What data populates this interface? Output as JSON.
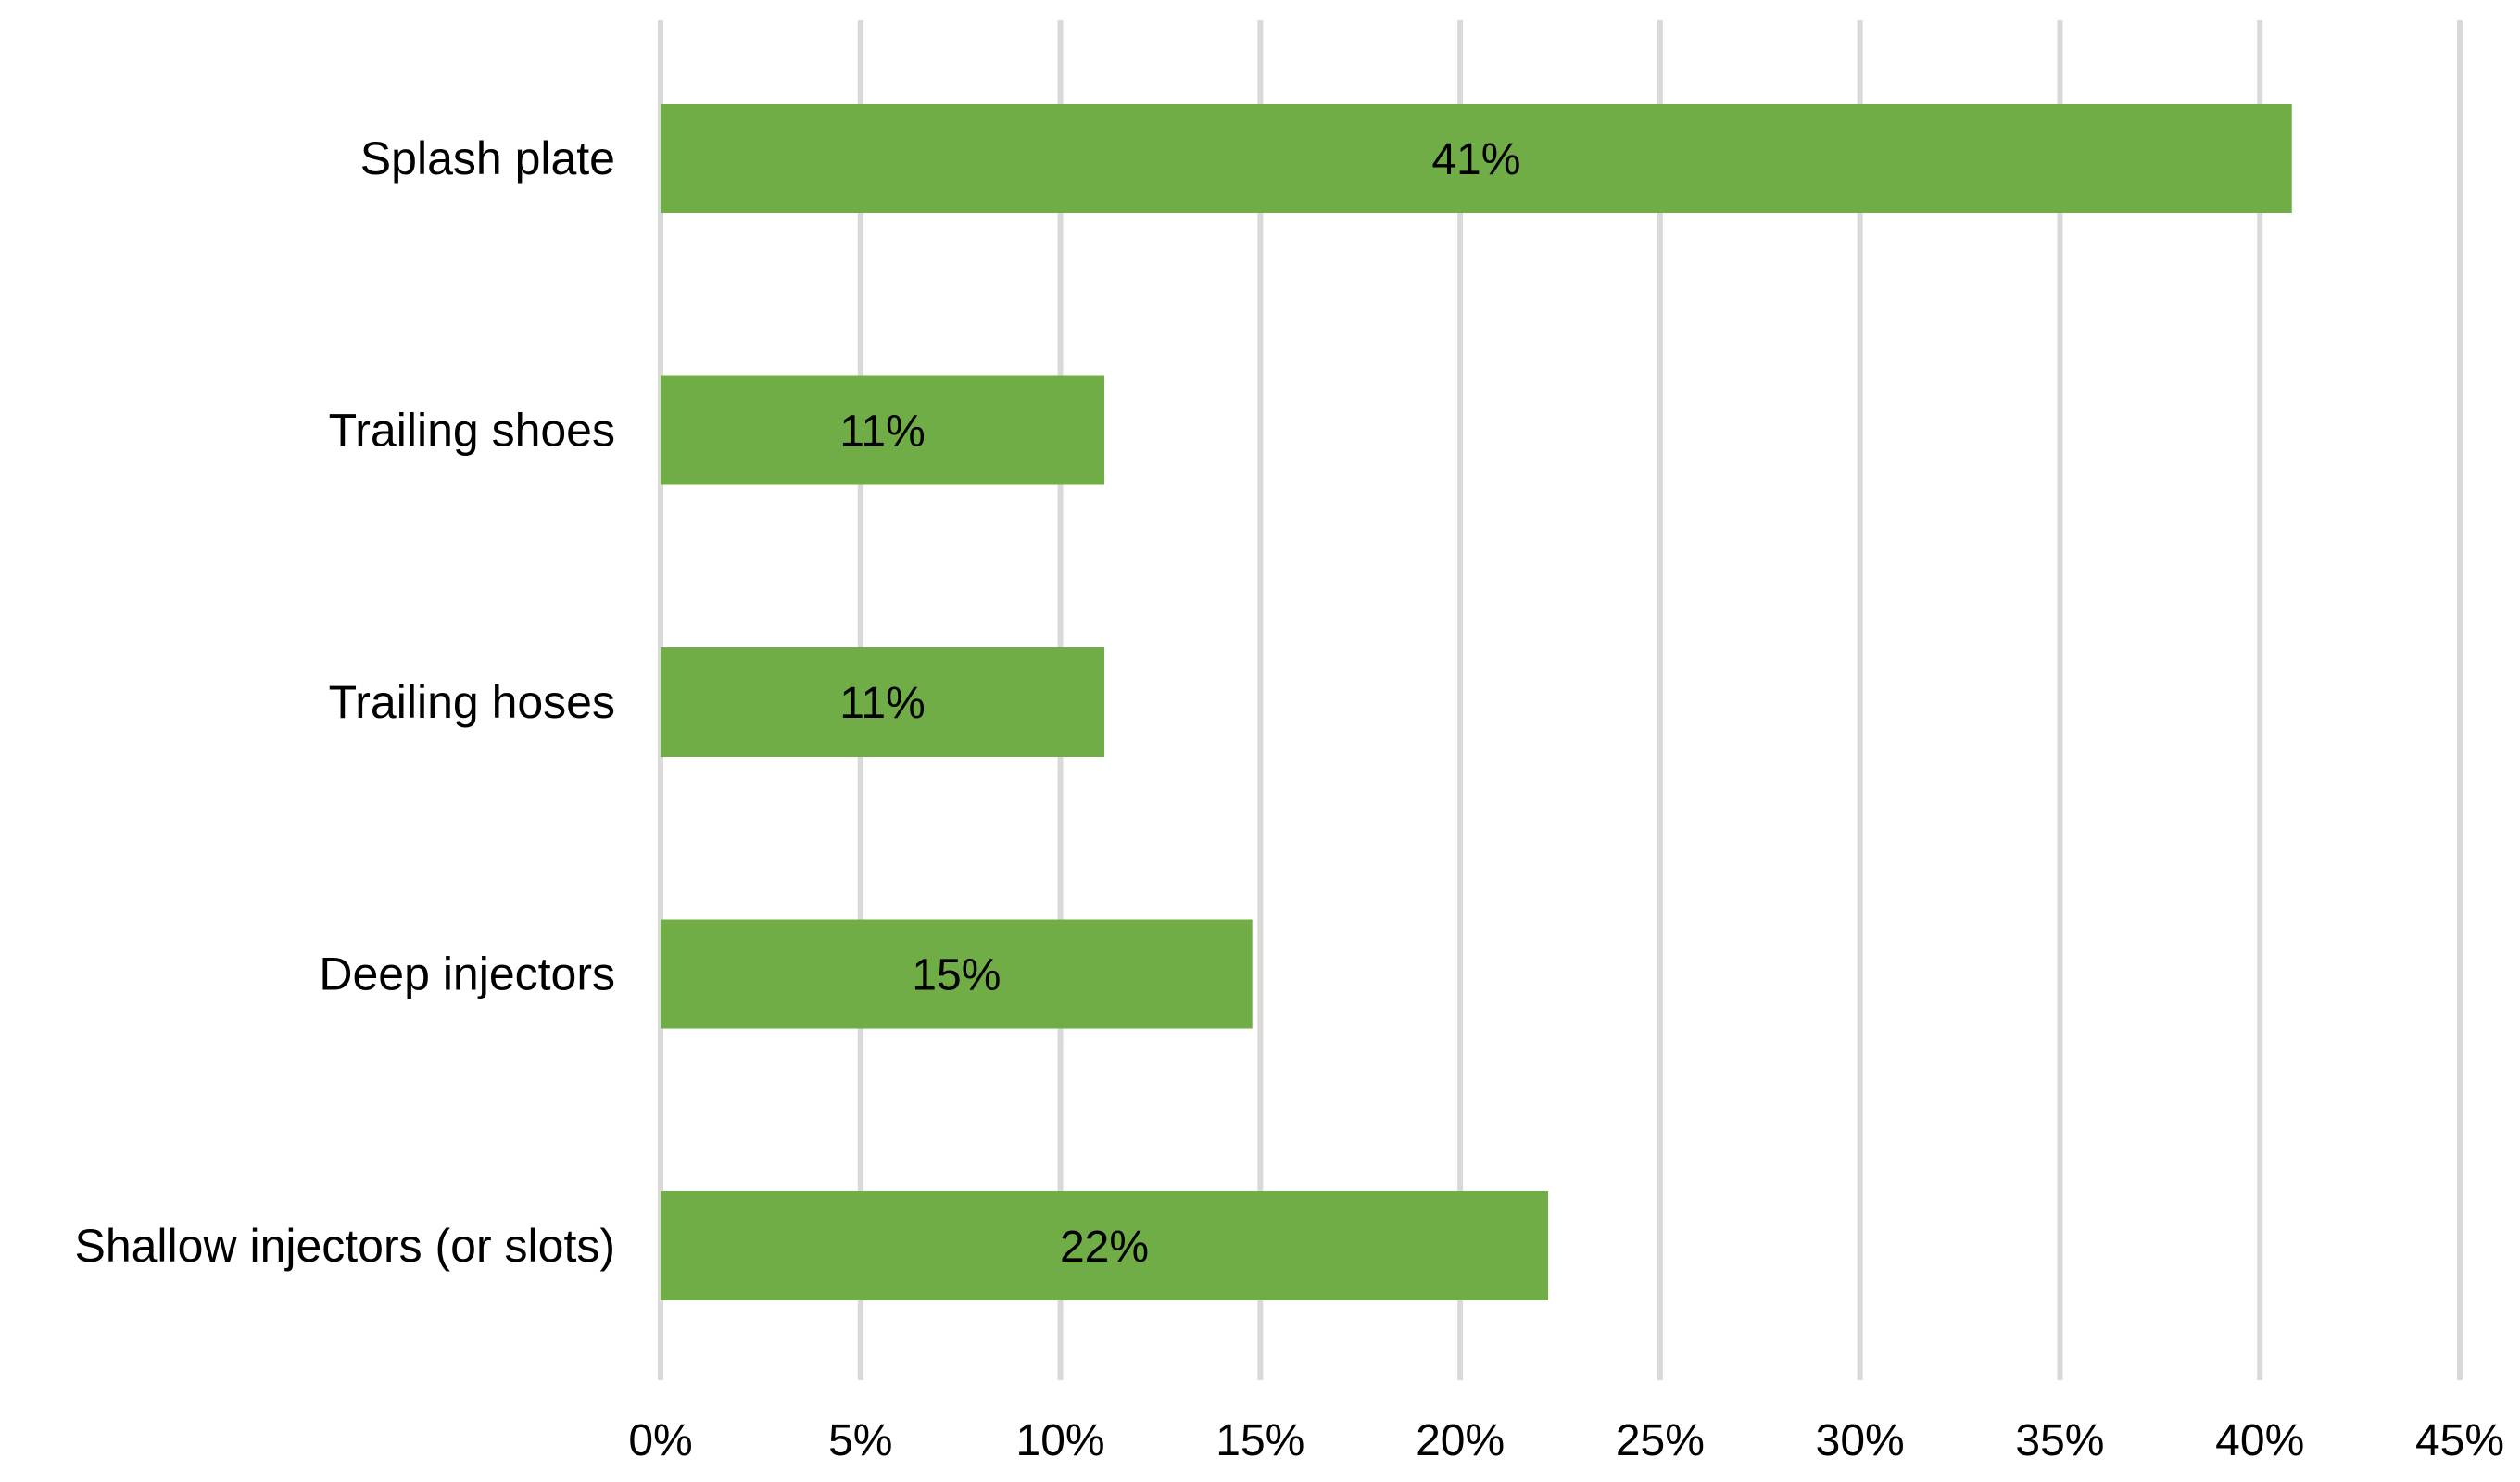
{
  "chart_data": {
    "type": "bar",
    "orientation": "horizontal",
    "title": "",
    "xlabel": "",
    "ylabel": "",
    "categories": [
      "Splash plate",
      "Trailing shoes",
      "Trailing hoses",
      "Deep injectors",
      "Shallow injectors (or slots)"
    ],
    "values": [
      40.8,
      11.1,
      11.1,
      14.8,
      22.2
    ],
    "data_labels": [
      "41%",
      "11%",
      "11%",
      "15%",
      "22%"
    ],
    "xlim": [
      0,
      45
    ],
    "x_ticks": [
      0,
      5,
      10,
      15,
      20,
      25,
      30,
      35,
      40,
      45
    ],
    "x_tick_labels": [
      "0%",
      "5%",
      "10%",
      "15%",
      "20%",
      "25%",
      "30%",
      "35%",
      "40%",
      "45%"
    ],
    "grid": "vertical",
    "legend": "none",
    "colors": {
      "bar": "#70ad47",
      "grid": "#d9d9d9",
      "text": "#000000"
    }
  }
}
